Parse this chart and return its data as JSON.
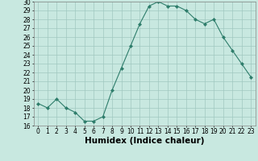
{
  "x": [
    0,
    1,
    2,
    3,
    4,
    5,
    6,
    7,
    8,
    9,
    10,
    11,
    12,
    13,
    14,
    15,
    16,
    17,
    18,
    19,
    20,
    21,
    22,
    23
  ],
  "y": [
    18.5,
    18.0,
    19.0,
    18.0,
    17.5,
    16.5,
    16.5,
    17.0,
    20.0,
    22.5,
    25.0,
    27.5,
    29.5,
    30.0,
    29.5,
    29.5,
    29.0,
    28.0,
    27.5,
    28.0,
    26.0,
    24.5,
    23.0,
    21.5
  ],
  "xlabel": "Humidex (Indice chaleur)",
  "ylim": [
    16,
    30
  ],
  "xlim": [
    -0.5,
    23.5
  ],
  "yticks": [
    16,
    17,
    18,
    19,
    20,
    21,
    22,
    23,
    24,
    25,
    26,
    27,
    28,
    29,
    30
  ],
  "xticks": [
    0,
    1,
    2,
    3,
    4,
    5,
    6,
    7,
    8,
    9,
    10,
    11,
    12,
    13,
    14,
    15,
    16,
    17,
    18,
    19,
    20,
    21,
    22,
    23
  ],
  "line_color": "#2E7D6B",
  "marker_color": "#2E7D6B",
  "bg_color": "#C8E8E0",
  "grid_color": "#A0C8C0",
  "tick_fontsize": 5.5,
  "xlabel_fontsize": 7.5
}
